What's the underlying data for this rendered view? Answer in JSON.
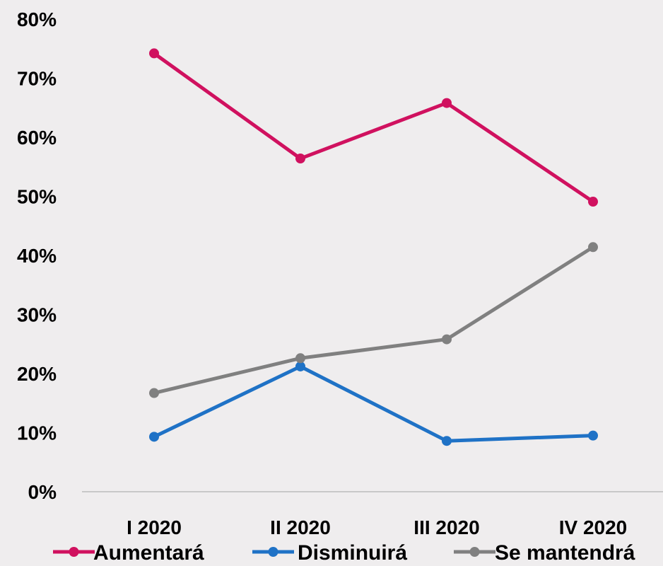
{
  "chart_data": {
    "type": "line",
    "categories": [
      "I 2020",
      "II 2020",
      "III 2020",
      "IV 2020"
    ],
    "y_ticks": [
      "0%",
      "10%",
      "20%",
      "30%",
      "40%",
      "50%",
      "60%",
      "70%",
      "80%"
    ],
    "ylim": [
      0,
      80
    ],
    "grid": false,
    "legend_position": "bottom",
    "series": [
      {
        "name": "Aumentará",
        "color": "#d0115f",
        "values": [
          74.2,
          56.4,
          65.8,
          49.1
        ]
      },
      {
        "name": "Disminuirá",
        "color": "#1f72c6",
        "values": [
          9.3,
          21.2,
          8.6,
          9.5
        ]
      },
      {
        "name": "Se mantendrá",
        "color": "#808080",
        "values": [
          16.7,
          22.6,
          25.8,
          41.4
        ]
      }
    ]
  }
}
